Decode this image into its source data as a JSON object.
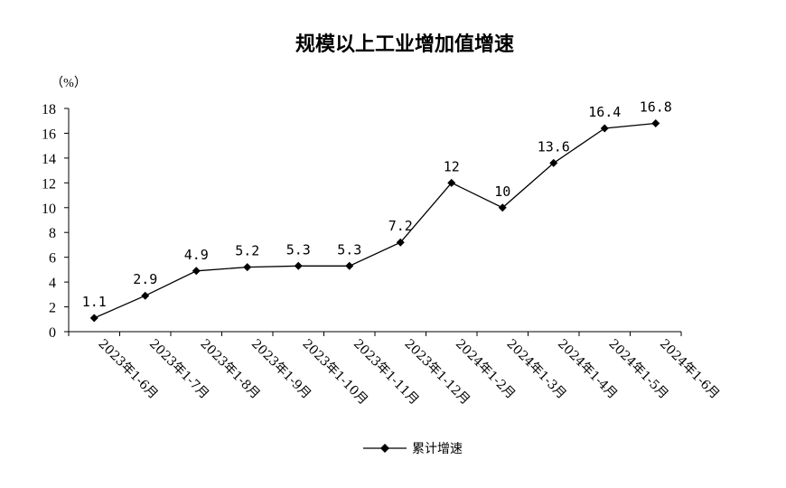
{
  "chart_data": {
    "type": "line",
    "title": "规模以上工业增加值增速",
    "unit_label": "（%）",
    "categories": [
      "2023年1-6月",
      "2023年1-7月",
      "2023年1-8月",
      "2023年1-9月",
      "2023年1-10月",
      "2023年1-11月",
      "2023年1-12月",
      "2024年1-2月",
      "2024年1-3月",
      "2024年1-4月",
      "2024年1-5月",
      "2024年1-6月"
    ],
    "series": [
      {
        "name": "累计增速",
        "values": [
          1.1,
          2.9,
          4.9,
          5.2,
          5.3,
          5.3,
          7.2,
          12,
          10,
          13.6,
          16.4,
          16.8
        ],
        "labels": [
          "1.1",
          "2.9",
          "4.9",
          "5.2",
          "5.3",
          "5.3",
          "7.2",
          "12",
          "10",
          "13.6",
          "16.4",
          "16.8"
        ],
        "color": "#000000"
      }
    ],
    "ylim": [
      0,
      18
    ],
    "yticks": [
      0,
      2,
      4,
      6,
      8,
      10,
      12,
      14,
      16,
      18
    ],
    "grid": false,
    "legend_position": "bottom-center"
  }
}
